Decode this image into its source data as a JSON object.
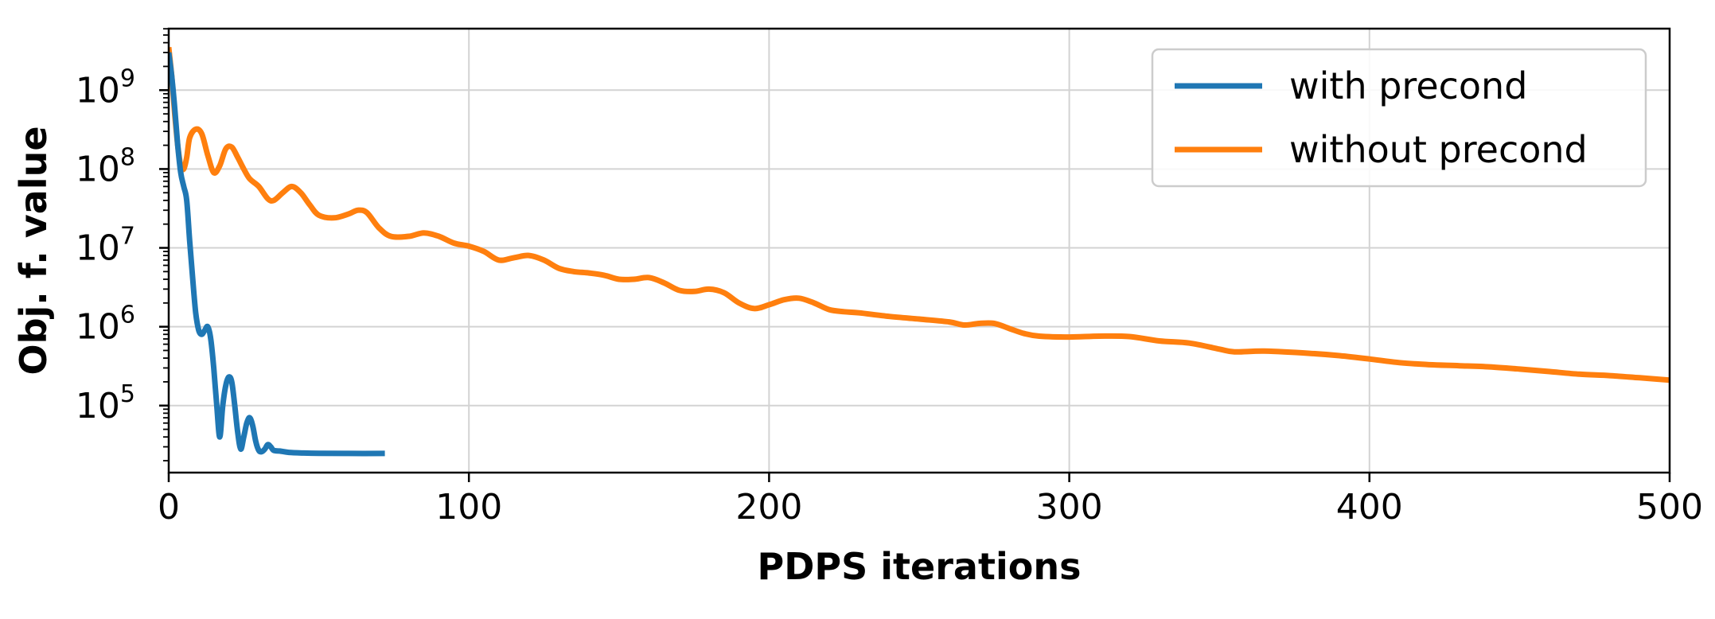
{
  "chart_data": {
    "type": "line",
    "xlabel": "PDPS iterations",
    "ylabel": "Obj. f. value",
    "xlim": [
      0,
      500
    ],
    "ylim_log10": [
      4.15,
      9.78
    ],
    "y_scale": "log",
    "grid": true,
    "legend_position": "top-right",
    "x_ticks": [
      {
        "value": 0,
        "label": "0"
      },
      {
        "value": 100,
        "label": "100"
      },
      {
        "value": 200,
        "label": "200"
      },
      {
        "value": 300,
        "label": "300"
      },
      {
        "value": 400,
        "label": "400"
      },
      {
        "value": 500,
        "label": "500"
      }
    ],
    "y_ticks": [
      {
        "value": 100000,
        "base": "10",
        "exp": "5"
      },
      {
        "value": 1000000,
        "base": "10",
        "exp": "6"
      },
      {
        "value": 10000000,
        "base": "10",
        "exp": "7"
      },
      {
        "value": 100000000,
        "base": "10",
        "exp": "8"
      },
      {
        "value": 1000000000,
        "base": "10",
        "exp": "9"
      }
    ],
    "series": [
      {
        "name": "with precond",
        "color": "#1f77b4",
        "points": [
          [
            0,
            3000000000
          ],
          [
            1,
            1500000000
          ],
          [
            2,
            600000000
          ],
          [
            3,
            200000000
          ],
          [
            4,
            90000000
          ],
          [
            5,
            60000000
          ],
          [
            6,
            40000000
          ],
          [
            7,
            12000000
          ],
          [
            8,
            4000000
          ],
          [
            9,
            1500000
          ],
          [
            10,
            900000
          ],
          [
            11,
            800000
          ],
          [
            12,
            900000
          ],
          [
            13,
            1000000
          ],
          [
            14,
            700000
          ],
          [
            15,
            300000
          ],
          [
            16,
            100000
          ],
          [
            17,
            40000
          ],
          [
            18,
            100000
          ],
          [
            19,
            180000
          ],
          [
            20,
            230000
          ],
          [
            21,
            200000
          ],
          [
            22,
            100000
          ],
          [
            23,
            45000
          ],
          [
            24,
            28000
          ],
          [
            25,
            40000
          ],
          [
            26,
            60000
          ],
          [
            27,
            70000
          ],
          [
            28,
            55000
          ],
          [
            29,
            35000
          ],
          [
            30,
            27000
          ],
          [
            31,
            26000
          ],
          [
            32,
            28000
          ],
          [
            33,
            32000
          ],
          [
            34,
            30000
          ],
          [
            35,
            27000
          ],
          [
            37,
            26500
          ],
          [
            40,
            25500
          ],
          [
            45,
            25000
          ],
          [
            50,
            24800
          ],
          [
            60,
            24700
          ],
          [
            72,
            24700
          ]
        ]
      },
      {
        "name": "without precond",
        "color": "#ff7f0e",
        "points": [
          [
            0,
            3500000000
          ],
          [
            1,
            1500000000
          ],
          [
            2,
            500000000
          ],
          [
            3,
            200000000
          ],
          [
            4,
            110000000
          ],
          [
            5,
            100000000
          ],
          [
            6,
            140000000
          ],
          [
            7,
            250000000
          ],
          [
            9,
            320000000
          ],
          [
            11,
            280000000
          ],
          [
            13,
            150000000
          ],
          [
            15,
            90000000
          ],
          [
            17,
            110000000
          ],
          [
            19,
            180000000
          ],
          [
            21,
            190000000
          ],
          [
            23,
            140000000
          ],
          [
            25,
            100000000
          ],
          [
            27,
            75000000
          ],
          [
            30,
            60000000
          ],
          [
            33,
            42000000
          ],
          [
            35,
            40000000
          ],
          [
            38,
            50000000
          ],
          [
            41,
            60000000
          ],
          [
            44,
            50000000
          ],
          [
            47,
            35000000
          ],
          [
            50,
            26000000
          ],
          [
            55,
            24000000
          ],
          [
            60,
            27000000
          ],
          [
            63,
            30000000
          ],
          [
            66,
            28000000
          ],
          [
            70,
            18000000
          ],
          [
            74,
            14000000
          ],
          [
            80,
            14000000
          ],
          [
            85,
            15500000
          ],
          [
            90,
            14000000
          ],
          [
            95,
            11500000
          ],
          [
            100,
            10500000
          ],
          [
            105,
            9000000
          ],
          [
            110,
            7000000
          ],
          [
            115,
            7500000
          ],
          [
            120,
            8000000
          ],
          [
            125,
            7000000
          ],
          [
            130,
            5500000
          ],
          [
            135,
            5000000
          ],
          [
            140,
            4800000
          ],
          [
            145,
            4500000
          ],
          [
            150,
            4000000
          ],
          [
            155,
            4000000
          ],
          [
            160,
            4200000
          ],
          [
            165,
            3600000
          ],
          [
            170,
            2900000
          ],
          [
            175,
            2800000
          ],
          [
            180,
            3000000
          ],
          [
            185,
            2700000
          ],
          [
            190,
            2000000
          ],
          [
            195,
            1700000
          ],
          [
            200,
            1900000
          ],
          [
            205,
            2200000
          ],
          [
            210,
            2300000
          ],
          [
            215,
            2000000
          ],
          [
            220,
            1650000
          ],
          [
            225,
            1550000
          ],
          [
            230,
            1500000
          ],
          [
            240,
            1350000
          ],
          [
            250,
            1250000
          ],
          [
            260,
            1150000
          ],
          [
            265,
            1050000
          ],
          [
            270,
            1100000
          ],
          [
            275,
            1100000
          ],
          [
            280,
            950000
          ],
          [
            285,
            820000
          ],
          [
            290,
            760000
          ],
          [
            300,
            740000
          ],
          [
            310,
            760000
          ],
          [
            320,
            750000
          ],
          [
            330,
            660000
          ],
          [
            340,
            620000
          ],
          [
            350,
            520000
          ],
          [
            355,
            480000
          ],
          [
            365,
            490000
          ],
          [
            380,
            460000
          ],
          [
            390,
            430000
          ],
          [
            400,
            390000
          ],
          [
            410,
            350000
          ],
          [
            420,
            330000
          ],
          [
            430,
            320000
          ],
          [
            440,
            310000
          ],
          [
            450,
            290000
          ],
          [
            460,
            270000
          ],
          [
            470,
            250000
          ],
          [
            480,
            240000
          ],
          [
            490,
            225000
          ],
          [
            500,
            210000
          ]
        ]
      }
    ]
  }
}
